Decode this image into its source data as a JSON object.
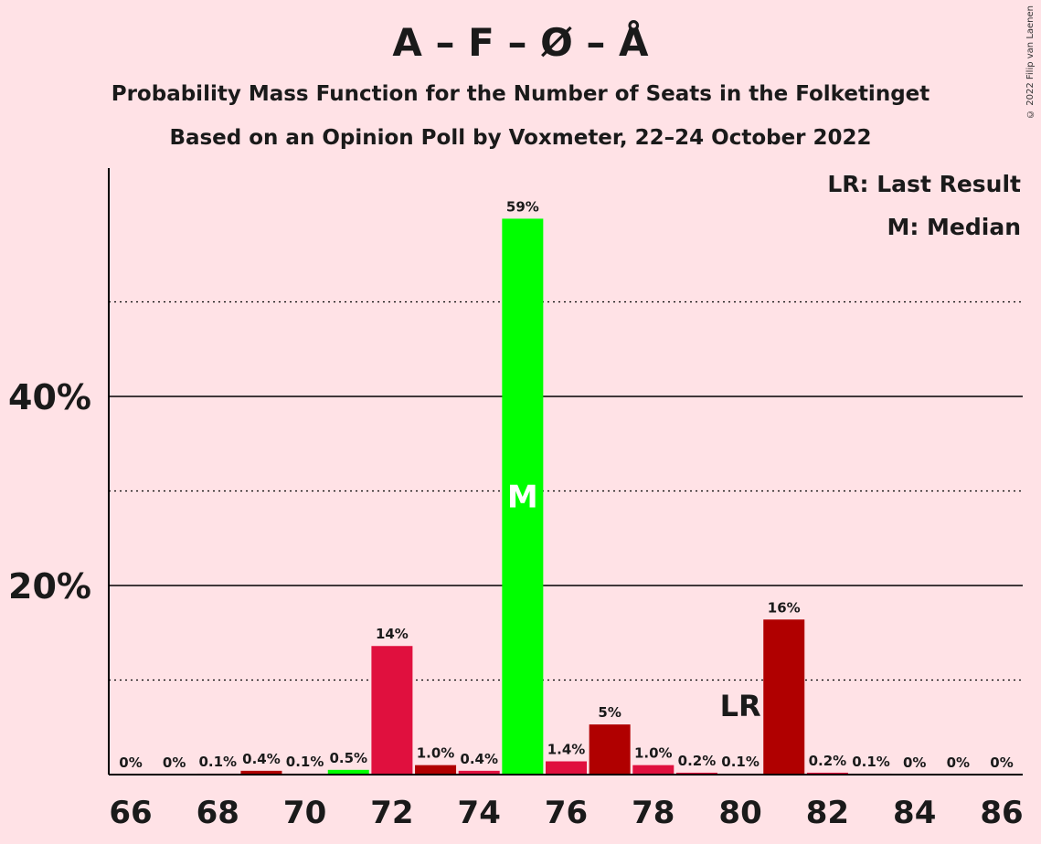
{
  "copyright": "© 2022 Filip van Laenen",
  "chart_data": {
    "type": "bar",
    "title": "A – F – Ø – Å",
    "subtitle": "Probability Mass Function for the Number of Seats in the Folketinget",
    "subtitle2": "Based on an Opinion Poll by Voxmeter, 22–24 October 2022",
    "xlabel": "",
    "ylabel": "",
    "ylim": [
      0,
      64
    ],
    "categories": [
      66,
      67,
      68,
      69,
      70,
      71,
      72,
      73,
      74,
      75,
      76,
      77,
      78,
      79,
      80,
      81,
      82,
      83,
      84,
      85,
      86
    ],
    "values": [
      0,
      0,
      0.1,
      0.4,
      0.1,
      0.5,
      13.6,
      1.0,
      0.4,
      58.8,
      1.4,
      5.3,
      1.0,
      0.2,
      0.1,
      16.4,
      0.2,
      0.1,
      0,
      0,
      0
    ],
    "value_labels": [
      "0%",
      "0%",
      "0.1%",
      "0.4%",
      "0.1%",
      "0.5%",
      "14%",
      "1.0%",
      "0.4%",
      "59%",
      "1.4%",
      "5%",
      "1.0%",
      "0.2%",
      "0.1%",
      "16%",
      "0.2%",
      "0.1%",
      "0%",
      "0%",
      "0%"
    ],
    "colors": [
      "#e0103e",
      "#e0103e",
      "#e0103e",
      "#b00000",
      "#e0103e",
      "#00ff00",
      "#e0103e",
      "#b00000",
      "#e0103e",
      "#00ff00",
      "#e0103e",
      "#b00000",
      "#e0103e",
      "#e0103e",
      "#e0103e",
      "#b00000",
      "#e0103e",
      "#e0103e",
      "#e0103e",
      "#e0103e",
      "#e0103e"
    ],
    "x_tick_labels": [
      "66",
      "68",
      "70",
      "72",
      "74",
      "76",
      "78",
      "80",
      "82",
      "84",
      "86"
    ],
    "y_tick_labels": [
      {
        "value": 20,
        "label": "20%"
      },
      {
        "value": 40,
        "label": "40%"
      }
    ],
    "solid_gridlines": [
      20,
      40
    ],
    "dotted_gridlines": [
      10,
      30,
      50
    ],
    "median": {
      "seat": 75,
      "label": "M"
    },
    "last_result": {
      "seat": 80,
      "label": "LR"
    },
    "legend": [
      "LR: Last Result",
      "M: Median"
    ],
    "legend_position": "top-right"
  }
}
